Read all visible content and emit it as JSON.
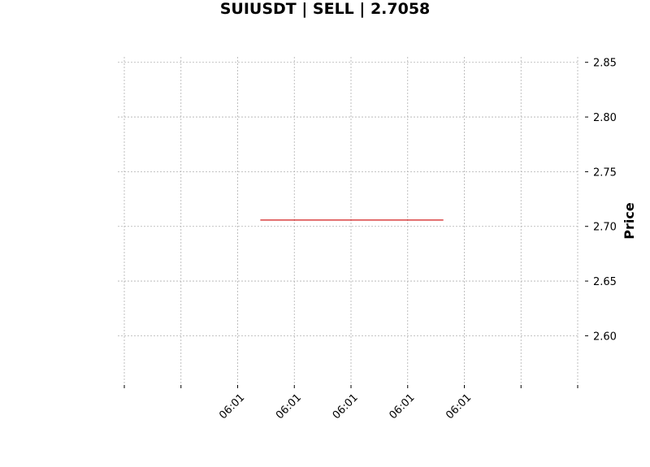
{
  "chart_data": {
    "type": "line",
    "title": "SUIUSDT | SELL | 2.7058",
    "xlabel": "",
    "ylabel": "Price",
    "ylim": [
      2.555,
      2.855
    ],
    "xlim": [
      0,
      8
    ],
    "x_ticks": [
      {
        "x": 0,
        "label": ""
      },
      {
        "x": 1,
        "label": ""
      },
      {
        "x": 2,
        "label": "06:01"
      },
      {
        "x": 3,
        "label": "06:01"
      },
      {
        "x": 4,
        "label": "06:01"
      },
      {
        "x": 5,
        "label": "06:01"
      },
      {
        "x": 6,
        "label": "06:01"
      },
      {
        "x": 7,
        "label": ""
      },
      {
        "x": 8,
        "label": ""
      }
    ],
    "y_ticks": [
      "2.60",
      "2.65",
      "2.70",
      "2.75",
      "2.80",
      "2.85"
    ],
    "grid": true,
    "y_axis_side": "right",
    "series": [
      {
        "color": "#cc0000",
        "x": [
          2.4,
          5.63
        ],
        "y": [
          2.7058,
          2.7058
        ]
      }
    ]
  }
}
